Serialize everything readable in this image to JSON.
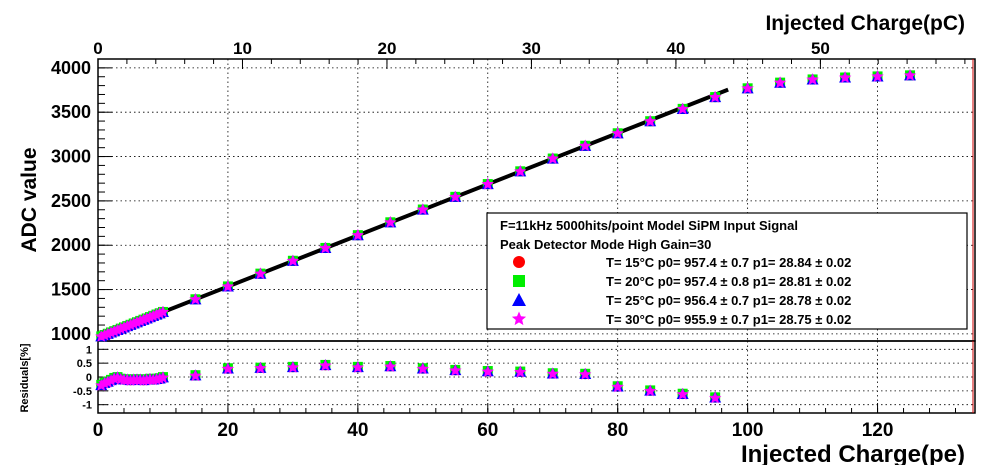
{
  "chart_data": [
    {
      "type": "scatter",
      "title": "",
      "xlabel": "",
      "ylabel": "ADC value",
      "top_axis_label": "Injected Charge(pC)",
      "top_axis_ticks": [
        "0",
        "10",
        "20",
        "30",
        "40",
        "50"
      ],
      "top_axis_range": [
        0,
        60.7
      ],
      "xlim": [
        0,
        135
      ],
      "ylim": [
        920,
        4100
      ],
      "x_ticks": [
        "0",
        "20",
        "40",
        "60",
        "80",
        "100",
        "120"
      ],
      "y_ticks": [
        "1000",
        "1500",
        "2000",
        "2500",
        "3000",
        "3500",
        "4000"
      ],
      "grid": true,
      "x": [
        0.5,
        1,
        1.5,
        2,
        2.5,
        3,
        3.5,
        4,
        4.5,
        5,
        5.5,
        6,
        6.5,
        7,
        7.5,
        8,
        8.5,
        9,
        9.5,
        10,
        15,
        20,
        25,
        30,
        35,
        40,
        45,
        50,
        55,
        60,
        65,
        70,
        75,
        80,
        85,
        90,
        95,
        100,
        105,
        110,
        115,
        120,
        125
      ],
      "series": [
        {
          "name": "T= 15°C  p0= 957.4 ± 0.7  p1= 28.84 ± 0.02",
          "color": "#ff0000",
          "marker": "circle",
          "p0": 957.4,
          "p1": 28.84
        },
        {
          "name": "T= 20°C  p0= 957.4 ± 0.8  p1= 28.81 ± 0.02",
          "color": "#00ee00",
          "marker": "square",
          "p0": 957.4,
          "p1": 28.81
        },
        {
          "name": "T= 25°C  p0= 956.4 ± 0.7  p1= 28.78 ± 0.02",
          "color": "#0000ff",
          "marker": "triangle",
          "p0": 956.4,
          "p1": 28.78
        },
        {
          "name": "T= 30°C  p0= 955.9 ± 0.7  p1= 28.75 ± 0.02",
          "color": "#ff00ff",
          "marker": "star",
          "p0": 955.9,
          "p1": 28.75
        }
      ],
      "values": [
        971,
        986,
        1000,
        1015,
        1029,
        1043,
        1058,
        1072,
        1087,
        1101,
        1116,
        1130,
        1145,
        1159,
        1173,
        1188,
        1202,
        1217,
        1231,
        1246,
        1389,
        1534,
        1678,
        1823,
        1968,
        2112,
        2257,
        2401,
        2544,
        2688,
        2832,
        2976,
        3120,
        3261,
        3397,
        3536,
        3669,
        3768,
        3832,
        3868,
        3890,
        3902,
        3914
      ],
      "fit_range": [
        0,
        97
      ],
      "legend": {
        "position": "bottom-right",
        "line1": "F=11kHz 5000hits/point Model SiPM Input Signal",
        "line2": "Peak Detector Mode High Gain=30"
      }
    },
    {
      "type": "scatter",
      "xlabel": "Injected Charge(pe)",
      "ylabel": "Residuals[%]",
      "xlim": [
        0,
        135
      ],
      "ylim": [
        -1.3,
        1.3
      ],
      "y_ticks": [
        "1",
        "0.5",
        "0",
        "-0.5",
        "-1"
      ],
      "x": [
        0.5,
        1,
        1.5,
        2,
        2.5,
        3,
        3.5,
        4,
        4.5,
        5,
        5.5,
        6,
        6.5,
        7,
        7.5,
        8,
        8.5,
        9,
        9.5,
        10,
        15,
        20,
        25,
        30,
        35,
        40,
        45,
        50,
        55,
        60,
        65,
        70,
        75,
        80,
        85,
        90,
        95
      ],
      "values": [
        -0.3,
        -0.22,
        -0.18,
        -0.12,
        -0.05,
        -0.02,
        -0.08,
        -0.1,
        -0.1,
        -0.12,
        -0.1,
        -0.1,
        -0.1,
        -0.12,
        -0.1,
        -0.08,
        -0.1,
        -0.08,
        -0.06,
        -0.02,
        0.05,
        0.3,
        0.32,
        0.35,
        0.42,
        0.35,
        0.38,
        0.3,
        0.24,
        0.2,
        0.18,
        0.12,
        0.1,
        -0.35,
        -0.5,
        -0.62,
        -0.75
      ]
    }
  ]
}
